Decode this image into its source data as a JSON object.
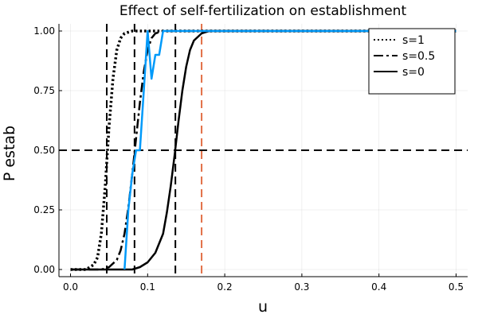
{
  "chart_data": {
    "type": "line",
    "title": "Effect of self-fertilization on establishment",
    "xlabel": "u",
    "ylabel": "P estab",
    "xlim": [
      -0.015,
      0.515
    ],
    "ylim": [
      -0.03,
      1.03
    ],
    "xticks": [
      "0.0",
      "0.1",
      "0.2",
      "0.3",
      "0.4",
      "0.5"
    ],
    "yticks": [
      "0.00",
      "0.25",
      "0.50",
      "0.75",
      "1.00"
    ],
    "grid": true,
    "legend_position": "top-right",
    "series": [
      {
        "name": "s=1",
        "style": "dotted",
        "color": "#000000",
        "x": [
          0.0,
          0.02,
          0.03,
          0.035,
          0.04,
          0.045,
          0.05,
          0.055,
          0.06,
          0.065,
          0.07,
          0.08,
          0.09,
          0.1,
          0.5
        ],
        "y": [
          0.0,
          0.0,
          0.02,
          0.05,
          0.15,
          0.35,
          0.6,
          0.8,
          0.92,
          0.97,
          0.99,
          1.0,
          1.0,
          1.0,
          1.0
        ]
      },
      {
        "name": "s=0.5",
        "style": "dashdot",
        "color": "#000000",
        "x": [
          0.0,
          0.04,
          0.05,
          0.06,
          0.065,
          0.07,
          0.075,
          0.08,
          0.085,
          0.09,
          0.095,
          0.1,
          0.105,
          0.11,
          0.12,
          0.5
        ],
        "y": [
          0.0,
          0.0,
          0.01,
          0.04,
          0.08,
          0.15,
          0.26,
          0.4,
          0.55,
          0.7,
          0.83,
          0.92,
          0.97,
          0.99,
          1.0,
          1.0
        ]
      },
      {
        "name": "s=0",
        "style": "solid",
        "color": "#000000",
        "x": [
          0.0,
          0.08,
          0.09,
          0.1,
          0.11,
          0.12,
          0.125,
          0.13,
          0.135,
          0.14,
          0.145,
          0.15,
          0.155,
          0.16,
          0.17,
          0.18,
          0.19,
          0.2,
          0.5
        ],
        "y": [
          0.0,
          0.0,
          0.01,
          0.03,
          0.07,
          0.15,
          0.24,
          0.35,
          0.48,
          0.62,
          0.75,
          0.85,
          0.92,
          0.96,
          0.99,
          1.0,
          1.0,
          1.0,
          1.0
        ]
      },
      {
        "color": "#009AFA",
        "style": "solid",
        "x": [
          0.07,
          0.075,
          0.08,
          0.085,
          0.09,
          0.095,
          0.1,
          0.105,
          0.11,
          0.115,
          0.12,
          0.125,
          0.13,
          0.135,
          0.5
        ],
        "y": [
          0.0,
          0.25,
          0.4,
          0.5,
          0.5,
          0.75,
          1.0,
          0.8,
          0.9,
          0.9,
          1.0,
          1.0,
          1.0,
          1.0,
          1.0
        ]
      }
    ],
    "reference_lines": [
      {
        "orientation": "horizontal",
        "y": 0.5,
        "style": "dashed",
        "color": "#000000"
      },
      {
        "orientation": "vertical",
        "x": 0.047,
        "style": "dashed",
        "color": "#000000"
      },
      {
        "orientation": "vertical",
        "x": 0.083,
        "style": "dashed",
        "color": "#000000"
      },
      {
        "orientation": "vertical",
        "x": 0.136,
        "style": "dashed",
        "color": "#000000"
      },
      {
        "orientation": "vertical",
        "x": 0.17,
        "style": "dashed",
        "color": "#E26F46"
      }
    ]
  }
}
